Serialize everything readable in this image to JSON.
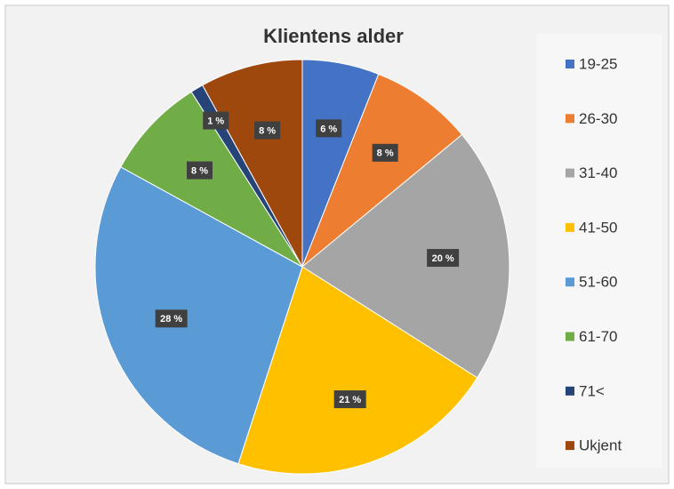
{
  "chart_data": {
    "type": "pie",
    "title": "Klientens alder",
    "categories": [
      "19-25",
      "26-30",
      "31-40",
      "41-50",
      "51-60",
      "61-70",
      "71<",
      "Ukjent"
    ],
    "values": [
      6,
      8,
      20,
      21,
      28,
      8,
      1,
      8
    ],
    "value_labels": [
      "6 %",
      "8 %",
      "20 %",
      "21 %",
      "28 %",
      "8 %",
      "1 %",
      "8 %"
    ],
    "colors": [
      "#4472c4",
      "#ed7d31",
      "#a5a5a5",
      "#ffc000",
      "#5b9bd5",
      "#70ad47",
      "#264478",
      "#9e480e"
    ],
    "legend": "right"
  }
}
